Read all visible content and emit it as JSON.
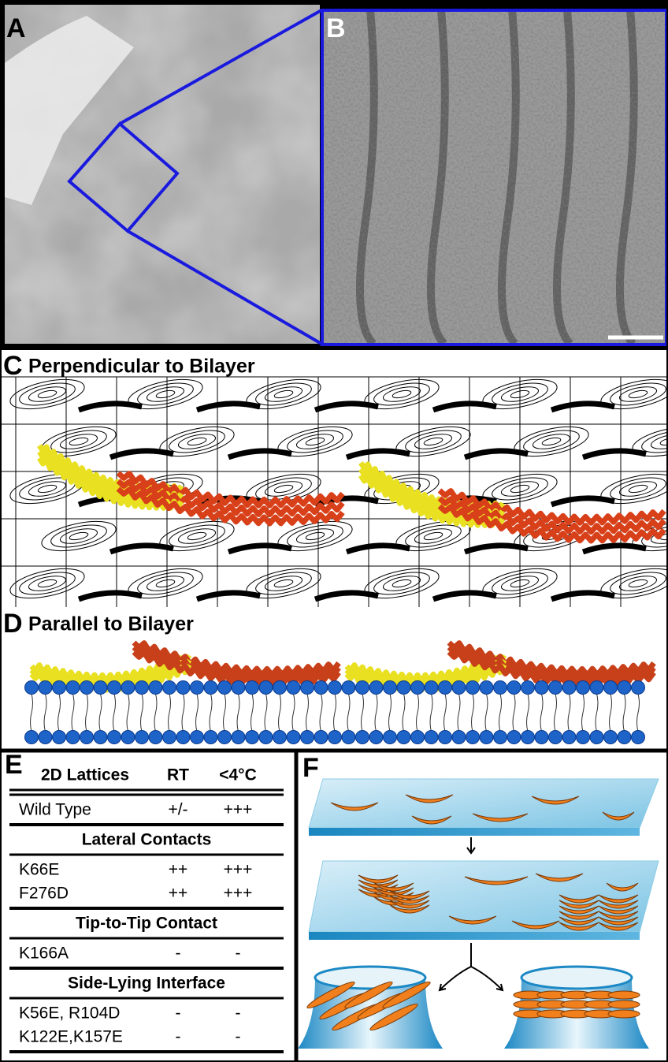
{
  "panels": {
    "a": {
      "label": "A"
    },
    "b": {
      "label": "B"
    },
    "c": {
      "label": "C",
      "title": "Perpendicular to Bilayer"
    },
    "d": {
      "label": "D",
      "title": "Parallel to Bilayer"
    },
    "e": {
      "label": "E",
      "table": {
        "header": [
          "2D Lattices",
          "RT",
          "<4°C"
        ],
        "groups": [
          {
            "rows": [
              [
                "Wild Type",
                "+/-",
                "+++"
              ]
            ]
          },
          {
            "title": "Lateral Contacts",
            "rows": [
              [
                "K66E",
                "++",
                "+++"
              ],
              [
                "F276D",
                "++",
                "+++"
              ]
            ]
          },
          {
            "title": "Tip-to-Tip Contact",
            "rows": [
              [
                "K166A",
                "-",
                "-"
              ]
            ]
          },
          {
            "title": "Side-Lying Interface",
            "rows": [
              [
                "K56E,  R104D",
                "-",
                "-"
              ],
              [
                "K122E,K157E",
                "-",
                "-"
              ]
            ]
          }
        ]
      }
    },
    "f": {
      "label": "F"
    }
  }
}
